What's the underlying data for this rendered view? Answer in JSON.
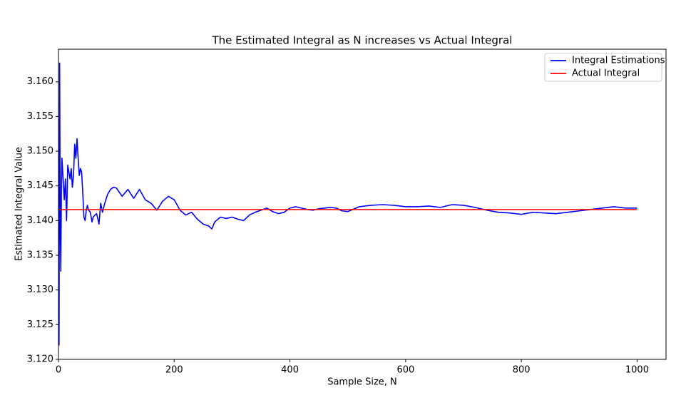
{
  "chart_data": {
    "type": "line",
    "title": "The Estimated Integral as N increases vs Actual Integral",
    "xlabel": "Sample Size, N",
    "ylabel": "Estimated Integral Value",
    "xlim": [
      0,
      1050
    ],
    "ylim": [
      3.12,
      3.1647
    ],
    "xticks": [
      0,
      200,
      400,
      600,
      800,
      1000
    ],
    "yticks": [
      {
        "value": 3.12,
        "label": "3.120"
      },
      3.125,
      {
        "value": 3.13,
        "label": "3.130"
      },
      3.135,
      {
        "value": 3.14,
        "label": "3.140"
      },
      3.145,
      {
        "value": 3.15,
        "label": "3.150"
      },
      3.155,
      {
        "value": 3.16,
        "label": "3.160"
      }
    ],
    "legend": "upper right",
    "series": [
      {
        "name": "Integral Estimations",
        "color": "#0000ff",
        "x": [
          1,
          2,
          3,
          4,
          5,
          6,
          8,
          10,
          12,
          14,
          16,
          18,
          20,
          22,
          24,
          26,
          28,
          30,
          32,
          34,
          36,
          38,
          40,
          42,
          44,
          46,
          48,
          50,
          52,
          55,
          58,
          60,
          63,
          66,
          70,
          73,
          76,
          80,
          85,
          90,
          95,
          100,
          110,
          120,
          130,
          140,
          150,
          160,
          170,
          180,
          190,
          200,
          210,
          220,
          230,
          240,
          250,
          260,
          265,
          270,
          280,
          290,
          300,
          310,
          320,
          330,
          340,
          350,
          360,
          370,
          380,
          390,
          400,
          410,
          420,
          430,
          440,
          450,
          460,
          470,
          480,
          490,
          500,
          520,
          540,
          560,
          580,
          600,
          620,
          640,
          660,
          680,
          700,
          720,
          740,
          760,
          780,
          800,
          820,
          840,
          860,
          880,
          900,
          920,
          940,
          960,
          980,
          1000
        ],
        "values": [
          3.122,
          3.1627,
          3.14,
          3.1327,
          3.144,
          3.149,
          3.146,
          3.143,
          3.146,
          3.14,
          3.148,
          3.147,
          3.146,
          3.1475,
          3.1448,
          3.1465,
          3.151,
          3.149,
          3.1518,
          3.149,
          3.1465,
          3.1475,
          3.147,
          3.144,
          3.1405,
          3.14,
          3.1415,
          3.1422,
          3.1415,
          3.1412,
          3.1398,
          3.1405,
          3.1408,
          3.141,
          3.1395,
          3.1425,
          3.1412,
          3.1425,
          3.1438,
          3.1445,
          3.1448,
          3.1447,
          3.1435,
          3.1445,
          3.1432,
          3.1445,
          3.143,
          3.1425,
          3.1415,
          3.1428,
          3.1435,
          3.143,
          3.1415,
          3.1408,
          3.1412,
          3.1402,
          3.1395,
          3.1392,
          3.1388,
          3.1398,
          3.1405,
          3.1403,
          3.1405,
          3.1402,
          3.14,
          3.1408,
          3.1412,
          3.1415,
          3.1418,
          3.1413,
          3.141,
          3.1412,
          3.1418,
          3.142,
          3.1418,
          3.1416,
          3.1415,
          3.1417,
          3.1418,
          3.1419,
          3.1418,
          3.1414,
          3.1413,
          3.142,
          3.1422,
          3.1423,
          3.1422,
          3.142,
          3.142,
          3.1421,
          3.1419,
          3.1423,
          3.1422,
          3.1419,
          3.1415,
          3.1412,
          3.1411,
          3.1409,
          3.1412,
          3.1411,
          3.141,
          3.1412,
          3.1414,
          3.1416,
          3.1418,
          3.142,
          3.1418,
          3.1418
        ]
      },
      {
        "name": "Actual Integral",
        "color": "#ff0000",
        "x": [
          1,
          1000
        ],
        "values": [
          3.141592653589793,
          3.141592653589793
        ]
      }
    ]
  }
}
